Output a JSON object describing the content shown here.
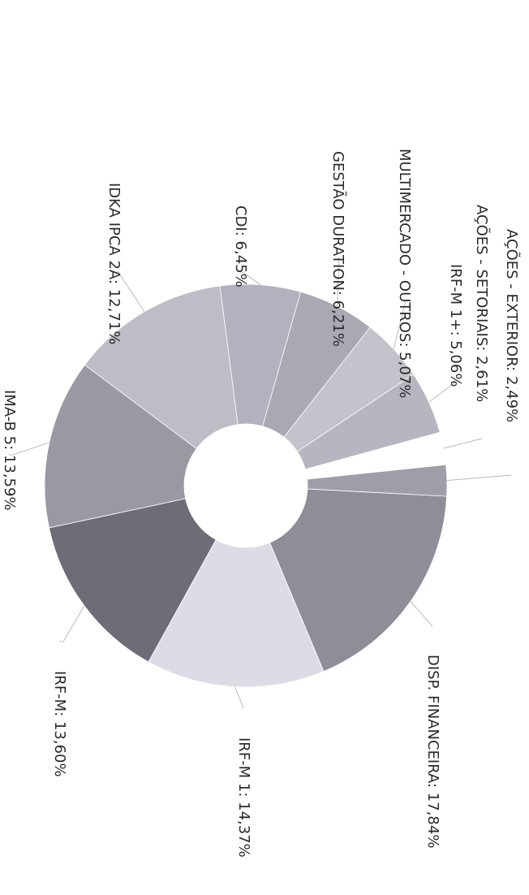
{
  "chart_data": {
    "type": "pie",
    "donut": true,
    "rotated": "90deg clockwise",
    "slices": [
      {
        "label": "DISP. FINANCEIRA: 17,84%",
        "name": "DISP. FINANCEIRA",
        "value": 17.84,
        "color": "#8f8d98"
      },
      {
        "label": "IRF-M 1: 14,37%",
        "name": "IRF-M 1",
        "value": 14.37,
        "color": "#dddce6"
      },
      {
        "label": "IRF-M: 13,60%",
        "name": "IRF-M",
        "value": 13.6,
        "color": "#6e6c77"
      },
      {
        "label": "IMA-B 5: 13,59%",
        "name": "IMA-B 5",
        "value": 13.59,
        "color": "#9a99a3"
      },
      {
        "label": "IDKA IPCA 2A: 12,71%",
        "name": "IDKA IPCA 2A",
        "value": 12.71,
        "color": "#bdbcc7"
      },
      {
        "label": "CDI: 6,45%",
        "name": "CDI",
        "value": 6.45,
        "color": "#b2b1bd"
      },
      {
        "label": "GESTÃO DURATION: 6,21%",
        "name": "GESTÃO DURATION",
        "value": 6.21,
        "color": "#a9a8b3"
      },
      {
        "label": "MULTIMERCADO - OUTROS: 5,07%",
        "name": "MULTIMERCADO - OUTROS",
        "value": 5.07,
        "color": "#c4c3cc"
      },
      {
        "label": "IRF-M 1+: 5,06%",
        "name": "IRF-M 1+",
        "value": 5.06,
        "color": "#b7b6c0"
      },
      {
        "label": "AÇÕES - SETORIAIS: 2,61%",
        "name": "AÇÕES - SETORIAIS",
        "value": 2.61,
        "color": "#ffffff"
      },
      {
        "label": "AÇÕES - EXTERIOR: 2,49%",
        "name": "AÇÕES - EXTERIOR",
        "value": 2.49,
        "color": "#9e9da8"
      }
    ]
  }
}
